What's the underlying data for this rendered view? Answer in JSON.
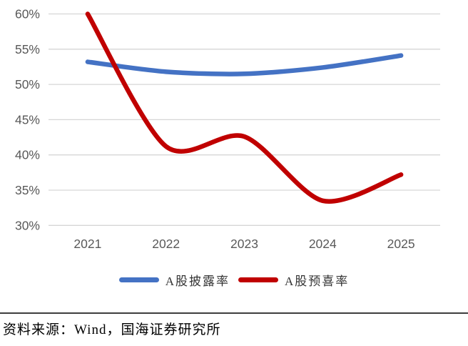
{
  "chart_data": {
    "type": "line",
    "categories": [
      "2021",
      "2022",
      "2023",
      "2024",
      "2025"
    ],
    "series": [
      {
        "name": "A股披露率",
        "color": "#4472C4",
        "values": [
          53.2,
          51.8,
          51.5,
          52.4,
          54.1
        ]
      },
      {
        "name": "A股预喜率",
        "color": "#C00000",
        "values": [
          60.0,
          41.2,
          42.6,
          33.5,
          37.2
        ]
      }
    ],
    "title": "",
    "xlabel": "",
    "ylabel": "",
    "ylim": [
      30,
      60
    ],
    "ytick_step": 5,
    "ytick_labels": [
      "30%",
      "35%",
      "40%",
      "45%",
      "50%",
      "55%",
      "60%"
    ],
    "grid": "horizontal-only",
    "legend_position": "bottom",
    "smooth_lines": true,
    "line_width": 6.5
  },
  "style": {
    "gridline_color": "#D6D6D6",
    "tick_label_color": "#595959",
    "legend_text_color": "#333333"
  },
  "footer": {
    "source_text": "资料来源：Wind，国海证券研究所"
  }
}
